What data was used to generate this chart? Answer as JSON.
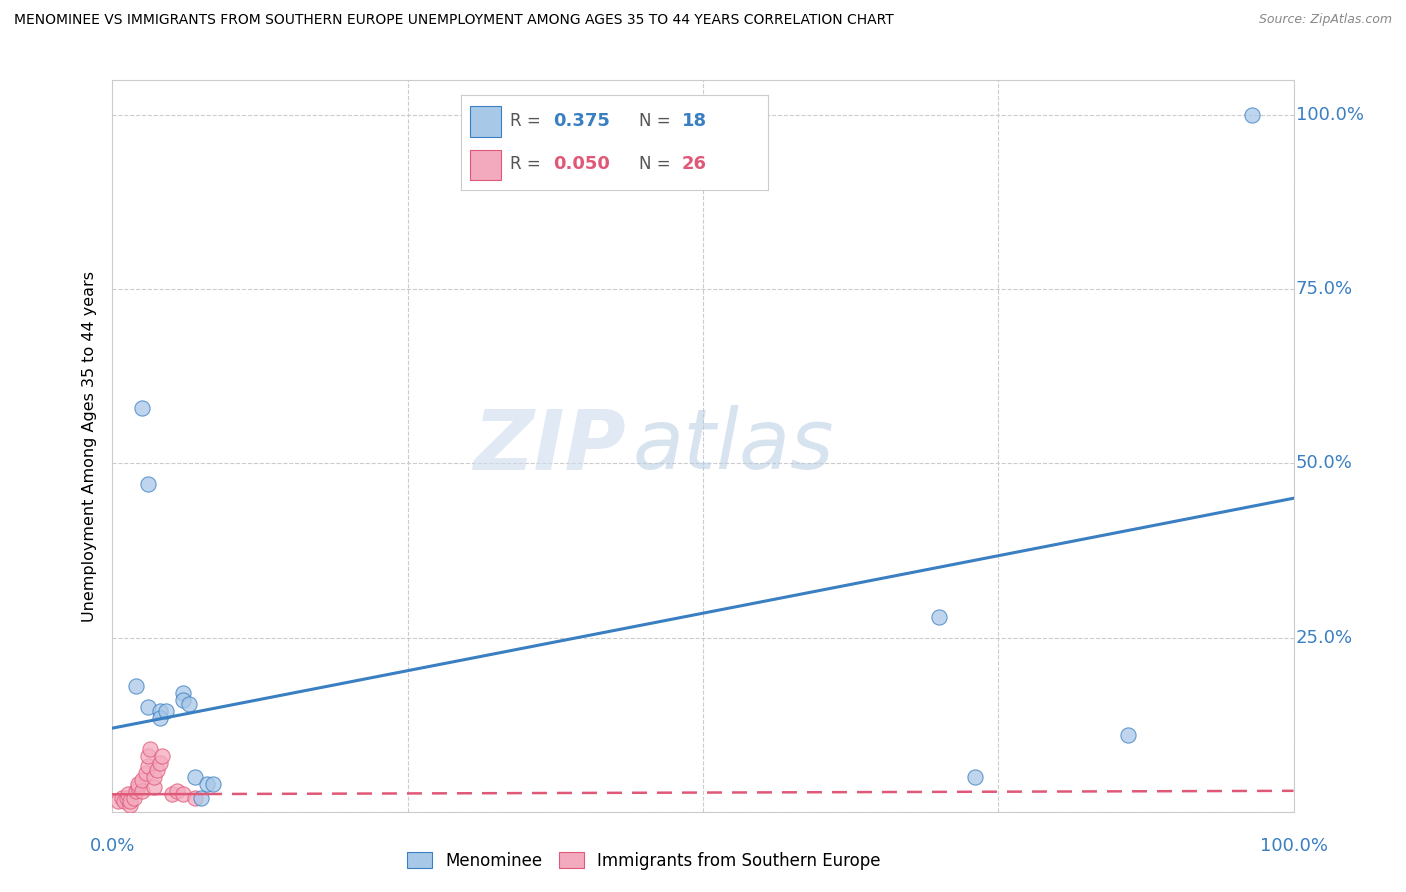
{
  "title": "MENOMINEE VS IMMIGRANTS FROM SOUTHERN EUROPE UNEMPLOYMENT AMONG AGES 35 TO 44 YEARS CORRELATION CHART",
  "source": "Source: ZipAtlas.com",
  "ylabel": "Unemployment Among Ages 35 to 44 years",
  "menominee_color": "#a8c8e8",
  "immigrants_color": "#f4aabe",
  "menominee_line_color": "#3a7fc1",
  "immigrants_line_color": "#e05878",
  "menominee_scatter": [
    [
      0.02,
      0.18
    ],
    [
      0.025,
      0.58
    ],
    [
      0.03,
      0.47
    ],
    [
      0.03,
      0.15
    ],
    [
      0.04,
      0.145
    ],
    [
      0.04,
      0.135
    ],
    [
      0.045,
      0.145
    ],
    [
      0.06,
      0.17
    ],
    [
      0.06,
      0.16
    ],
    [
      0.065,
      0.155
    ],
    [
      0.07,
      0.05
    ],
    [
      0.075,
      0.02
    ],
    [
      0.08,
      0.04
    ],
    [
      0.085,
      0.04
    ],
    [
      0.7,
      0.28
    ],
    [
      0.73,
      0.05
    ],
    [
      0.86,
      0.11
    ],
    [
      0.965,
      1.0
    ]
  ],
  "immigrants_scatter": [
    [
      0.005,
      0.015
    ],
    [
      0.008,
      0.02
    ],
    [
      0.01,
      0.015
    ],
    [
      0.012,
      0.02
    ],
    [
      0.013,
      0.025
    ],
    [
      0.015,
      0.01
    ],
    [
      0.015,
      0.015
    ],
    [
      0.018,
      0.02
    ],
    [
      0.02,
      0.03
    ],
    [
      0.022,
      0.035
    ],
    [
      0.022,
      0.04
    ],
    [
      0.025,
      0.03
    ],
    [
      0.025,
      0.045
    ],
    [
      0.028,
      0.055
    ],
    [
      0.03,
      0.065
    ],
    [
      0.03,
      0.08
    ],
    [
      0.032,
      0.09
    ],
    [
      0.035,
      0.035
    ],
    [
      0.035,
      0.05
    ],
    [
      0.038,
      0.06
    ],
    [
      0.04,
      0.07
    ],
    [
      0.042,
      0.08
    ],
    [
      0.05,
      0.025
    ],
    [
      0.055,
      0.03
    ],
    [
      0.06,
      0.025
    ],
    [
      0.07,
      0.02
    ]
  ],
  "watermark_zip": "ZIP",
  "watermark_atlas": "atlas",
  "xlim": [
    0.0,
    1.0
  ],
  "ylim": [
    0.0,
    1.05
  ],
  "ytick_vals": [
    0.0,
    0.25,
    0.5,
    0.75,
    1.0
  ],
  "ytick_labels": [
    "",
    "25.0%",
    "50.0%",
    "75.0%",
    "100.0%"
  ],
  "xtick_vals": [
    0.0,
    0.25,
    0.5,
    0.75,
    1.0
  ],
  "blue_line_x": [
    0.0,
    1.0
  ],
  "blue_line_y": [
    0.12,
    0.45
  ],
  "pink_line_x": [
    0.0,
    1.0
  ],
  "pink_line_y": [
    0.025,
    0.03
  ]
}
